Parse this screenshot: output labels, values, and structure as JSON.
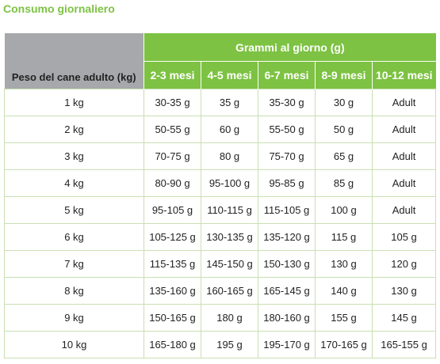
{
  "title": "Consumo giornaliero",
  "table": {
    "header": {
      "weight_label": "Peso del cane adulto (kg)",
      "group_label": "Grammi al giorno (g)",
      "columns": [
        "2-3 mesi",
        "4-5 mesi",
        "6-7 mesi",
        "8-9 mesi",
        "10-12 mesi"
      ]
    },
    "rows": [
      [
        "1 kg",
        "30-35 g",
        "35 g",
        "35-30 g",
        "30 g",
        "Adult"
      ],
      [
        "2 kg",
        "50-55 g",
        "60 g",
        "55-50 g",
        "50 g",
        "Adult"
      ],
      [
        "3 kg",
        "70-75 g",
        "80 g",
        "75-70 g",
        "65 g",
        "Adult"
      ],
      [
        "4 kg",
        "80-90 g",
        "95-100 g",
        "95-85 g",
        "85 g",
        "Adult"
      ],
      [
        "5 kg",
        "95-105 g",
        "110-115 g",
        "115-105 g",
        "100 g",
        "Adult"
      ],
      [
        "6 kg",
        "105-125 g",
        "130-135 g",
        "135-120 g",
        "115 g",
        "105 g"
      ],
      [
        "7 kg",
        "115-135 g",
        "145-150 g",
        "150-130 g",
        "130 g",
        "120 g"
      ],
      [
        "8 kg",
        "135-160 g",
        "160-165 g",
        "165-145 g",
        "140 g",
        "130 g"
      ],
      [
        "9 kg",
        "150-165 g",
        "180 g",
        "180-160 g",
        "155 g",
        "145 g"
      ],
      [
        "10 kg",
        "165-180 g",
        "195 g",
        "195-170 g",
        "170-165 g",
        "165-155 g"
      ]
    ]
  }
}
